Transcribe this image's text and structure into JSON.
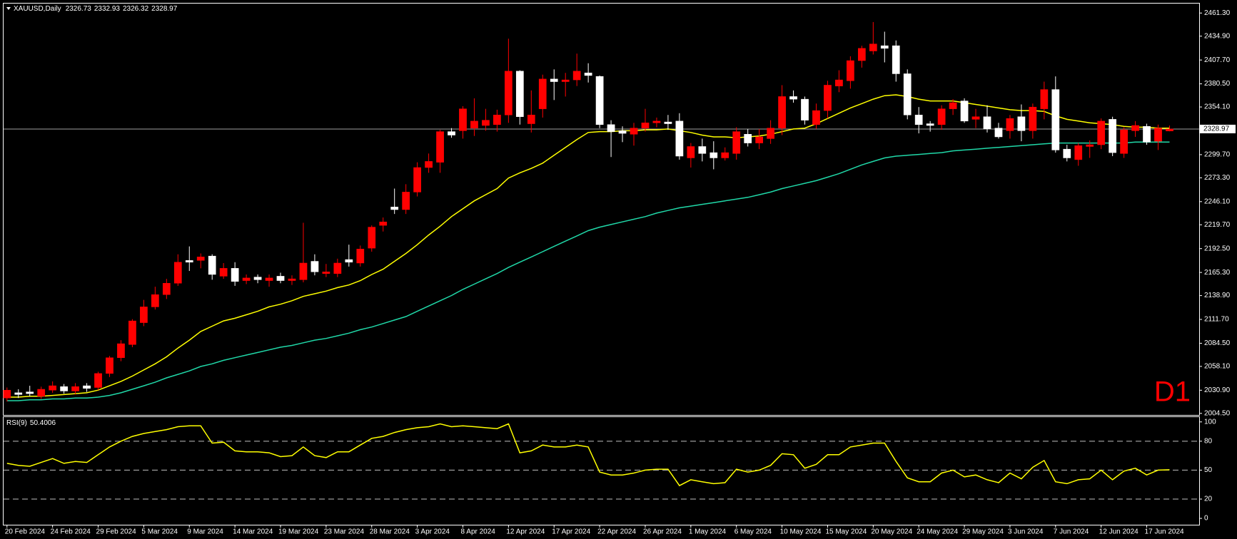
{
  "chart_data": [
    {
      "type": "candlestick",
      "title": "XAUUSD,Daily",
      "bull_color": "#ff0000",
      "bear_color": "#ffffff",
      "candles": [
        [
          2022,
          2034,
          2018,
          2031
        ],
        [
          2028,
          2032,
          2022,
          2026
        ],
        [
          2029,
          2036,
          2024,
          2027
        ],
        [
          2024,
          2035,
          2021,
          2032
        ],
        [
          2031,
          2041,
          2028,
          2036
        ],
        [
          2035,
          2038,
          2027,
          2030
        ],
        [
          2030,
          2039,
          2026,
          2035
        ],
        [
          2036,
          2039,
          2029,
          2033
        ],
        [
          2034,
          2052,
          2031,
          2050
        ],
        [
          2050,
          2070,
          2046,
          2068
        ],
        [
          2068,
          2088,
          2064,
          2084
        ],
        [
          2083,
          2112,
          2080,
          2110
        ],
        [
          2108,
          2134,
          2104,
          2126
        ],
        [
          2126,
          2149,
          2123,
          2140
        ],
        [
          2140,
          2158,
          2135,
          2153
        ],
        [
          2153,
          2186,
          2150,
          2177
        ],
        [
          2179,
          2195,
          2167,
          2177
        ],
        [
          2179,
          2187,
          2170,
          2183
        ],
        [
          2184,
          2186,
          2157,
          2163
        ],
        [
          2161,
          2176,
          2158,
          2170
        ],
        [
          2170,
          2177,
          2150,
          2155
        ],
        [
          2156,
          2163,
          2152,
          2159
        ],
        [
          2160,
          2163,
          2153,
          2157
        ],
        [
          2156,
          2163,
          2149,
          2159
        ],
        [
          2161,
          2165,
          2153,
          2156
        ],
        [
          2156,
          2162,
          2151,
          2158
        ],
        [
          2157,
          2222,
          2154,
          2176
        ],
        [
          2178,
          2186,
          2162,
          2166
        ],
        [
          2164,
          2175,
          2160,
          2166
        ],
        [
          2164,
          2181,
          2160,
          2176
        ],
        [
          2180,
          2197,
          2172,
          2177
        ],
        [
          2176,
          2196,
          2172,
          2192
        ],
        [
          2193,
          2219,
          2189,
          2217
        ],
        [
          2219,
          2228,
          2212,
          2223
        ],
        [
          2240,
          2261,
          2232,
          2237
        ],
        [
          2237,
          2266,
          2232,
          2257
        ],
        [
          2257,
          2291,
          2252,
          2285
        ],
        [
          2285,
          2301,
          2279,
          2292
        ],
        [
          2291,
          2328,
          2279,
          2326
        ],
        [
          2326,
          2330,
          2319,
          2322
        ],
        [
          2327,
          2355,
          2318,
          2352
        ],
        [
          2330,
          2364,
          2321,
          2338
        ],
        [
          2333,
          2352,
          2327,
          2339
        ],
        [
          2334,
          2351,
          2326,
          2345
        ],
        [
          2345,
          2432,
          2336,
          2395
        ],
        [
          2395,
          2396,
          2334,
          2343
        ],
        [
          2335,
          2373,
          2325,
          2345
        ],
        [
          2352,
          2391,
          2342,
          2386
        ],
        [
          2386,
          2397,
          2362,
          2383
        ],
        [
          2383,
          2393,
          2366,
          2385
        ],
        [
          2385,
          2415,
          2378,
          2395
        ],
        [
          2393,
          2404,
          2382,
          2390
        ],
        [
          2389,
          2390,
          2330,
          2334
        ],
        [
          2334,
          2339,
          2297,
          2326
        ],
        [
          2327,
          2332,
          2314,
          2324
        ],
        [
          2323,
          2336,
          2310,
          2330
        ],
        [
          2330,
          2352,
          2326,
          2336
        ],
        [
          2336,
          2342,
          2331,
          2338
        ],
        [
          2337,
          2345,
          2328,
          2335
        ],
        [
          2338,
          2347,
          2294,
          2298
        ],
        [
          2296,
          2313,
          2285,
          2309
        ],
        [
          2309,
          2318,
          2292,
          2301
        ],
        [
          2302,
          2315,
          2283,
          2296
        ],
        [
          2296,
          2308,
          2293,
          2302
        ],
        [
          2301,
          2331,
          2294,
          2326
        ],
        [
          2323,
          2329,
          2309,
          2313
        ],
        [
          2313,
          2329,
          2306,
          2320
        ],
        [
          2318,
          2339,
          2312,
          2330
        ],
        [
          2330,
          2379,
          2322,
          2366
        ],
        [
          2366,
          2373,
          2359,
          2363
        ],
        [
          2363,
          2366,
          2334,
          2339
        ],
        [
          2334,
          2358,
          2329,
          2350
        ],
        [
          2350,
          2384,
          2341,
          2379
        ],
        [
          2378,
          2396,
          2371,
          2385
        ],
        [
          2384,
          2412,
          2375,
          2407
        ],
        [
          2407,
          2424,
          2399,
          2421
        ],
        [
          2418,
          2451,
          2414,
          2426
        ],
        [
          2424,
          2440,
          2405,
          2421
        ],
        [
          2424,
          2430,
          2383,
          2392
        ],
        [
          2392,
          2397,
          2340,
          2345
        ],
        [
          2345,
          2354,
          2324,
          2334
        ],
        [
          2335,
          2338,
          2326,
          2333
        ],
        [
          2334,
          2356,
          2328,
          2352
        ],
        [
          2352,
          2363,
          2345,
          2359
        ],
        [
          2361,
          2364,
          2336,
          2338
        ],
        [
          2340,
          2352,
          2330,
          2343
        ],
        [
          2343,
          2356,
          2325,
          2329
        ],
        [
          2330,
          2336,
          2318,
          2320
        ],
        [
          2327,
          2345,
          2318,
          2341
        ],
        [
          2343,
          2357,
          2315,
          2327
        ],
        [
          2327,
          2358,
          2318,
          2354
        ],
        [
          2352,
          2383,
          2340,
          2374
        ],
        [
          2374,
          2389,
          2302,
          2305
        ],
        [
          2306,
          2311,
          2292,
          2296
        ],
        [
          2294,
          2313,
          2287,
          2310
        ],
        [
          2309,
          2316,
          2296,
          2311
        ],
        [
          2311,
          2341,
          2306,
          2338
        ],
        [
          2340,
          2343,
          2298,
          2302
        ],
        [
          2301,
          2331,
          2296,
          2328
        ],
        [
          2327,
          2338,
          2320,
          2333
        ],
        [
          2332,
          2335,
          2311,
          2314
        ],
        [
          2315,
          2334,
          2305,
          2330
        ],
        [
          2326.73,
          2332.93,
          2326.32,
          2328.97
        ]
      ],
      "lines": [
        {
          "color": "#ffff00",
          "values": [
            2023,
            2023,
            2024,
            2024,
            2025,
            2026,
            2027,
            2028,
            2031,
            2036,
            2041,
            2047,
            2054,
            2061,
            2069,
            2079,
            2088,
            2098,
            2104,
            2110,
            2113,
            2117,
            2121,
            2126,
            2129,
            2133,
            2138,
            2141,
            2144,
            2148,
            2151,
            2156,
            2163,
            2169,
            2178,
            2187,
            2197,
            2208,
            2218,
            2229,
            2238,
            2247,
            2254,
            2261,
            2273,
            2279,
            2284,
            2290,
            2299,
            2308,
            2317,
            2325,
            2326,
            2326,
            2327,
            2327,
            2328,
            2328,
            2329,
            2327,
            2325,
            2322,
            2320,
            2320,
            2319,
            2320,
            2321,
            2323,
            2326,
            2329,
            2330,
            2335,
            2341,
            2347,
            2353,
            2358,
            2363,
            2367,
            2368,
            2366,
            2363,
            2361,
            2361,
            2361,
            2359,
            2357,
            2355,
            2353,
            2351,
            2350,
            2350,
            2349,
            2344,
            2340,
            2338,
            2336,
            2335,
            2334,
            2332,
            2331,
            2331,
            2330,
            2330
          ]
        },
        {
          "color": "#20d8a8",
          "values": [
            2019,
            2019,
            2020,
            2020,
            2021,
            2021,
            2022,
            2022,
            2023,
            2025,
            2028,
            2032,
            2036,
            2040,
            2045,
            2049,
            2053,
            2058,
            2061,
            2065,
            2068,
            2071,
            2074,
            2077,
            2080,
            2082,
            2085,
            2088,
            2090,
            2093,
            2096,
            2100,
            2103,
            2107,
            2111,
            2115,
            2121,
            2127,
            2133,
            2139,
            2146,
            2152,
            2158,
            2164,
            2171,
            2177,
            2183,
            2189,
            2195,
            2201,
            2207,
            2213,
            2217,
            2220,
            2223,
            2226,
            2229,
            2233,
            2236,
            2239,
            2241,
            2243,
            2245,
            2247,
            2249,
            2251,
            2254,
            2257,
            2261,
            2264,
            2267,
            2270,
            2274,
            2278,
            2283,
            2288,
            2292,
            2296,
            2298,
            2299,
            2300,
            2301,
            2302,
            2304,
            2305,
            2306,
            2307,
            2308,
            2309,
            2310,
            2311,
            2312,
            2313,
            2313,
            2313,
            2313,
            2313,
            2313,
            2313,
            2314,
            2314,
            2314,
            2314
          ]
        }
      ],
      "xlim": [
        -0.3,
        104.6
      ],
      "ylim": [
        2002.7,
        2472.1
      ],
      "yticks": [
        {
          "value": 2461.3,
          "label": "2461.30"
        },
        {
          "value": 2434.9,
          "label": "2434.90"
        },
        {
          "value": 2407.7,
          "label": "2407.70"
        },
        {
          "value": 2380.5,
          "label": "2380.50"
        },
        {
          "value": 2354.1,
          "label": "2354.10"
        },
        {
          "value": 2299.7,
          "label": "2299.70"
        },
        {
          "value": 2273.3,
          "label": "2273.30"
        },
        {
          "value": 2246.1,
          "label": "2246.10"
        },
        {
          "value": 2219.7,
          "label": "2219.70"
        },
        {
          "value": 2192.5,
          "label": "2192.50"
        },
        {
          "value": 2165.3,
          "label": "2165.30"
        },
        {
          "value": 2138.9,
          "label": "2138.90"
        },
        {
          "value": 2111.7,
          "label": "2111.70"
        },
        {
          "value": 2084.5,
          "label": "2084.50"
        },
        {
          "value": 2058.1,
          "label": "2058.10"
        },
        {
          "value": 2030.9,
          "label": "2030.90"
        },
        {
          "value": 2004.5,
          "label": "2004.50"
        }
      ],
      "xticks": [
        {
          "value": 0,
          "label": "20 Feb 2024"
        },
        {
          "value": 4,
          "label": "24 Feb 2024"
        },
        {
          "value": 8,
          "label": "29 Feb 2024"
        },
        {
          "value": 12,
          "label": "5 Mar 2024"
        },
        {
          "value": 16,
          "label": "9 Mar 2024"
        },
        {
          "value": 20,
          "label": "14 Mar 2024"
        },
        {
          "value": 24,
          "label": "19 Mar 2024"
        },
        {
          "value": 28,
          "label": "23 Mar 2024"
        },
        {
          "value": 32,
          "label": "28 Mar 2024"
        },
        {
          "value": 36,
          "label": "3 Apr 2024"
        },
        {
          "value": 40,
          "label": "8 Apr 2024"
        },
        {
          "value": 44,
          "label": "12 Apr 2024"
        },
        {
          "value": 48,
          "label": "17 Apr 2024"
        },
        {
          "value": 52,
          "label": "22 Apr 2024"
        },
        {
          "value": 56,
          "label": "26 Apr 2024"
        },
        {
          "value": 60,
          "label": "1 May 2024"
        },
        {
          "value": 64,
          "label": "6 May 2024"
        },
        {
          "value": 68,
          "label": "10 May 2024"
        },
        {
          "value": 72,
          "label": "15 May 2024"
        },
        {
          "value": 76,
          "label": "20 May 2024"
        },
        {
          "value": 80,
          "label": "24 May 2024"
        },
        {
          "value": 84,
          "label": "29 May 2024"
        },
        {
          "value": 88,
          "label": "3 Jun 2024"
        },
        {
          "value": 92,
          "label": "7 Jun 2024"
        },
        {
          "value": 96,
          "label": "12 Jun 2024"
        },
        {
          "value": 100,
          "label": "17 Jun 2024"
        }
      ],
      "annotation": "D1",
      "annotation_color": "#ff0000"
    },
    {
      "type": "line",
      "title": "RSI(9)",
      "series": [
        {
          "color": "#ffff00",
          "values": [
            57,
            55,
            54,
            58,
            62,
            57,
            59,
            58,
            66,
            74,
            80,
            85,
            88,
            90,
            92,
            95,
            96,
            96,
            78,
            79,
            70,
            69,
            69,
            68,
            64,
            65,
            74,
            65,
            63,
            69,
            69,
            76,
            83,
            85,
            89,
            92,
            94,
            95,
            98,
            95,
            96,
            95,
            94,
            93,
            98,
            68,
            70,
            76,
            74,
            74,
            76,
            74,
            48,
            45,
            45,
            47,
            50,
            51,
            51,
            34,
            40,
            38,
            36,
            37,
            51,
            48,
            50,
            55,
            67,
            66,
            52,
            56,
            66,
            66,
            74,
            76,
            78,
            78,
            59,
            42,
            38,
            38,
            47,
            50,
            43,
            45,
            40,
            37,
            47,
            41,
            53,
            60,
            38,
            36,
            40,
            41,
            50,
            40,
            49,
            52,
            45,
            50,
            50.4006
          ]
        }
      ],
      "ylim": [
        -6.6,
        105
      ],
      "yticks": [
        100,
        80,
        50,
        20,
        0
      ],
      "levels": [
        80,
        50,
        20
      ]
    }
  ]
}
